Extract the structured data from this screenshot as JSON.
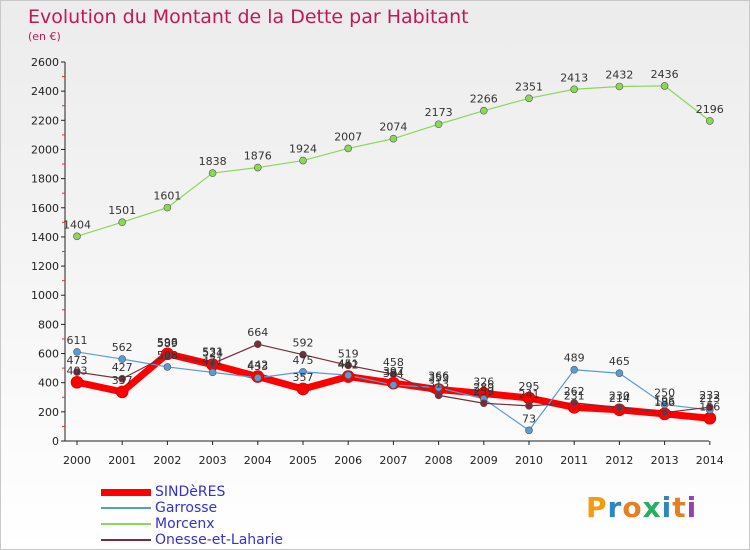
{
  "title": "Evolution du Montant de la Dette par Habitant",
  "unit": "(en €)",
  "logo": [
    "P",
    "r",
    "o",
    "x",
    "i",
    "t",
    "i"
  ],
  "chart_data": {
    "type": "line",
    "title": "Evolution du Montant de la Dette par Habitant",
    "ylabel": "(en €)",
    "x": [
      2000,
      2001,
      2002,
      2003,
      2004,
      2005,
      2006,
      2007,
      2008,
      2009,
      2010,
      2011,
      2012,
      2013,
      2014
    ],
    "ylim": [
      0,
      2600
    ],
    "yticks": [
      0,
      200,
      400,
      600,
      800,
      1000,
      1200,
      1400,
      1600,
      1800,
      2000,
      2200,
      2400,
      2600
    ],
    "grid": false,
    "legend_position": "bottom-left",
    "series": [
      {
        "name": "SINDèRES",
        "color": "#ff0000",
        "values": [
          403,
          337,
          598,
          524,
          442,
          357,
          442,
          397,
          353,
          326,
          295,
          231,
          214,
          186,
          156
        ]
      },
      {
        "name": "Garrosse",
        "color": "#5b9bd5",
        "values": [
          611,
          562,
          508,
          471,
          433,
          475,
          451,
          384,
          366,
          289,
          73,
          489,
          465,
          250,
          213
        ]
      },
      {
        "name": "Morcenx",
        "color": "#8cd65a",
        "values": [
          1404,
          1501,
          1601,
          1838,
          1876,
          1924,
          2007,
          2074,
          2173,
          2266,
          2351,
          2413,
          2432,
          2436,
          2196
        ]
      },
      {
        "name": "Onesse-et-Laharie",
        "color": "#7b2c3a",
        "values": [
          473,
          427,
          589,
          531,
          664,
          592,
          519,
          458,
          313,
          259,
          241,
          262,
          230,
          195,
          232
        ]
      }
    ]
  }
}
